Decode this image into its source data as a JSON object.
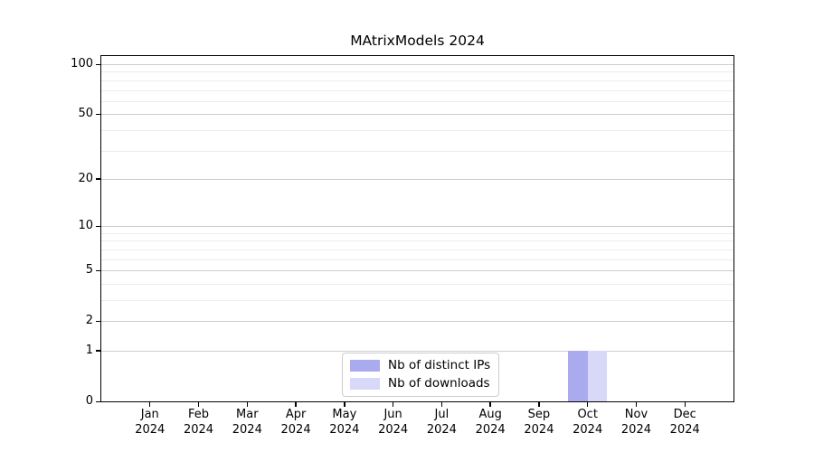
{
  "chart_data": {
    "type": "bar",
    "title": "MAtrixModels 2024",
    "x_months": [
      "Jan",
      "Feb",
      "Mar",
      "Apr",
      "May",
      "Jun",
      "Jul",
      "Aug",
      "Sep",
      "Oct",
      "Nov",
      "Dec"
    ],
    "x_year": "2024",
    "categories": [
      "Jan 2024",
      "Feb 2024",
      "Mar 2024",
      "Apr 2024",
      "May 2024",
      "Jun 2024",
      "Jul 2024",
      "Aug 2024",
      "Sep 2024",
      "Oct 2024",
      "Nov 2024",
      "Dec 2024"
    ],
    "series": [
      {
        "name": "Nb of distinct IPs",
        "color": "#aaaaef",
        "values": [
          0,
          0,
          0,
          0,
          0,
          0,
          0,
          0,
          0,
          1,
          0,
          0
        ]
      },
      {
        "name": "Nb of downloads",
        "color": "#d8d8f8",
        "values": [
          0,
          0,
          0,
          0,
          0,
          0,
          0,
          0,
          0,
          1,
          0,
          0
        ]
      }
    ],
    "xlabel": "",
    "ylabel": "",
    "y_scale": "log1p",
    "ylim": [
      0,
      112
    ],
    "y_major_ticks": [
      0,
      1,
      2,
      5,
      10,
      20,
      50,
      100
    ],
    "y_minor_ticks": [
      3,
      4,
      6,
      7,
      8,
      9,
      30,
      40,
      60,
      70,
      80,
      90
    ],
    "grid": "horizontal",
    "legend_position": "bottom-center"
  },
  "colors": {
    "background": "#ffffff",
    "axis": "#000000",
    "major_grid": "#cccccc",
    "minor_grid": "#ececec",
    "legend_border": "#cccccc"
  }
}
